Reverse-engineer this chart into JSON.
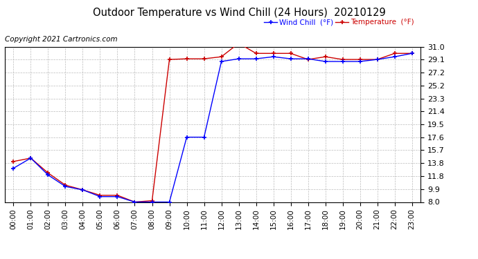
{
  "title": "Outdoor Temperature vs Wind Chill (24 Hours)  20210129",
  "copyright": "Copyright 2021 Cartronics.com",
  "legend_wind_chill": "Wind Chill  (°F)",
  "legend_temperature": "Temperature  (°F)",
  "wind_chill_color": "#0000ff",
  "temperature_color": "#cc0000",
  "background_color": "#ffffff",
  "grid_color": "#bbbbbb",
  "ylim": [
    8.0,
    31.0
  ],
  "yticks": [
    8.0,
    9.9,
    11.8,
    13.8,
    15.7,
    17.6,
    19.5,
    21.4,
    23.3,
    25.2,
    27.2,
    29.1,
    31.0
  ],
  "hours": [
    "00:00",
    "01:00",
    "02:00",
    "03:00",
    "04:00",
    "05:00",
    "06:00",
    "07:00",
    "08:00",
    "09:00",
    "10:00",
    "11:00",
    "12:00",
    "13:00",
    "14:00",
    "15:00",
    "16:00",
    "17:00",
    "18:00",
    "19:00",
    "20:00",
    "21:00",
    "22:00",
    "23:00"
  ],
  "temperature": [
    14.0,
    14.5,
    12.3,
    10.5,
    9.8,
    9.0,
    9.0,
    8.0,
    8.2,
    29.1,
    29.2,
    29.2,
    29.5,
    31.5,
    30.0,
    30.0,
    30.0,
    29.1,
    29.5,
    29.1,
    29.1,
    29.1,
    30.0,
    30.0
  ],
  "wind_chill": [
    13.0,
    14.5,
    12.0,
    10.3,
    9.8,
    8.8,
    8.8,
    8.0,
    8.0,
    8.0,
    17.6,
    17.6,
    28.8,
    29.2,
    29.2,
    29.5,
    29.2,
    29.2,
    28.8,
    28.8,
    28.8,
    29.1,
    29.5,
    30.0
  ]
}
